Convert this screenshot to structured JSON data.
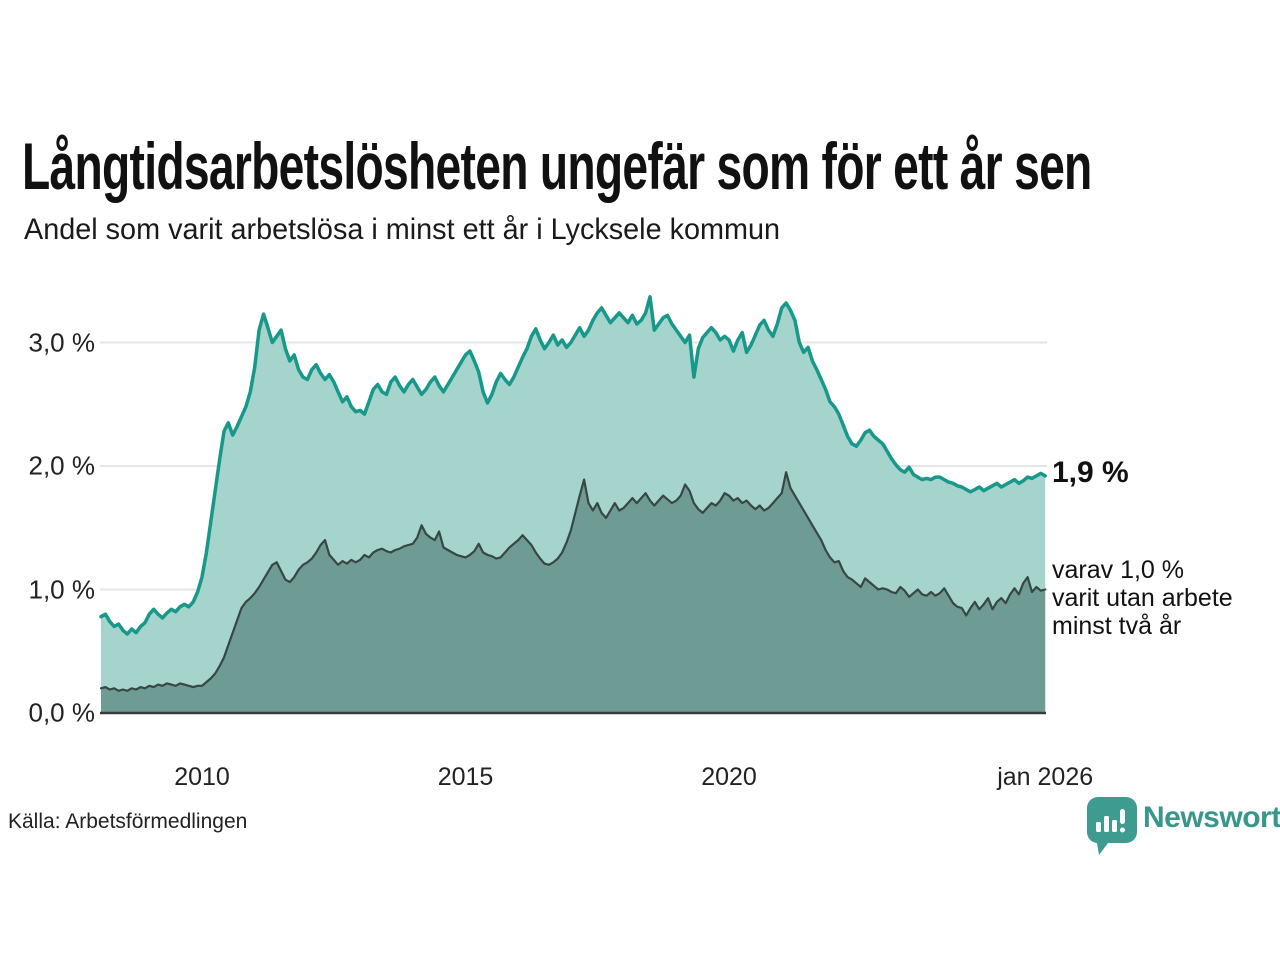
{
  "header": {
    "title": "Långtidsarbetslösheten ungefär som för ett år sen",
    "subtitle": "Andel som varit arbetslösa i minst ett år i Lycksele kommun"
  },
  "annotations": {
    "latest_value": "1,9 %",
    "note_lines": [
      "varav 1,0 %",
      "varit utan arbete",
      "minst två år"
    ]
  },
  "source": {
    "label": "Källa: Arbetsförmedlingen"
  },
  "branding": {
    "name": "Newsworthy",
    "logo_icon": "bar-chart-speech-bubble-icon",
    "color": "#38968b"
  },
  "colors": {
    "line_1yr": "#17988a",
    "fill_1yr": "#a5d4cd",
    "line_2yr": "#37474338",
    "line_2yr_stroke": "#374743",
    "fill_2yr": "#6f9b95",
    "gridline": "#e4e4e9",
    "axis": "#3b3b3b",
    "text": "#1a1a1a"
  },
  "chart_data": {
    "type": "area",
    "title": "Långtidsarbetslösheten ungefär som för ett år sen",
    "subtitle": "Andel som varit arbetslösa i minst ett år i Lycksele kommun",
    "unit": "%",
    "frequency": "monthly",
    "start": {
      "year": 2008,
      "month": 2
    },
    "end_label": "jan 2026",
    "x_domain": [
      2008.083,
      2026.0
    ],
    "ylim": [
      0,
      3.45
    ],
    "grid": true,
    "legend_position": "none",
    "x_ticks": [
      {
        "label": "2010",
        "year": 2010
      },
      {
        "label": "2015",
        "year": 2015
      },
      {
        "label": "2020",
        "year": 2020
      },
      {
        "label": "jan 2026",
        "year": 2026
      }
    ],
    "y_ticks": [
      {
        "label": "0,0 %",
        "value": 0
      },
      {
        "label": "1,0 %",
        "value": 1
      },
      {
        "label": "2,0 %",
        "value": 2
      },
      {
        "label": "3,0 %",
        "value": 3
      }
    ],
    "y_gridlines": [
      1,
      2,
      3
    ],
    "series": [
      {
        "name": "Andel arbetslösa i minst ett år",
        "latest_value": 1.9,
        "line_color": "#17988a",
        "fill_color": "#a5d4cd",
        "line_width": 3.5,
        "values": [
          0.78,
          0.8,
          0.74,
          0.7,
          0.72,
          0.67,
          0.64,
          0.68,
          0.65,
          0.7,
          0.73,
          0.8,
          0.84,
          0.8,
          0.77,
          0.81,
          0.84,
          0.82,
          0.86,
          0.88,
          0.86,
          0.9,
          0.98,
          1.1,
          1.3,
          1.55,
          1.8,
          2.05,
          2.28,
          2.35,
          2.25,
          2.32,
          2.4,
          2.48,
          2.6,
          2.8,
          3.1,
          3.23,
          3.12,
          3.0,
          3.05,
          3.1,
          2.95,
          2.85,
          2.9,
          2.78,
          2.72,
          2.7,
          2.78,
          2.82,
          2.75,
          2.7,
          2.74,
          2.68,
          2.6,
          2.52,
          2.56,
          2.48,
          2.44,
          2.45,
          2.42,
          2.52,
          2.62,
          2.66,
          2.6,
          2.58,
          2.68,
          2.72,
          2.65,
          2.6,
          2.66,
          2.7,
          2.64,
          2.58,
          2.62,
          2.68,
          2.72,
          2.65,
          2.6,
          2.66,
          2.72,
          2.78,
          2.84,
          2.9,
          2.93,
          2.85,
          2.76,
          2.6,
          2.51,
          2.58,
          2.68,
          2.75,
          2.7,
          2.66,
          2.72,
          2.8,
          2.88,
          2.95,
          3.05,
          3.11,
          3.02,
          2.95,
          3.0,
          3.06,
          2.98,
          3.02,
          2.96,
          3.0,
          3.06,
          3.12,
          3.05,
          3.1,
          3.18,
          3.24,
          3.28,
          3.22,
          3.16,
          3.2,
          3.24,
          3.2,
          3.16,
          3.22,
          3.15,
          3.18,
          3.24,
          3.37,
          3.1,
          3.15,
          3.2,
          3.22,
          3.15,
          3.1,
          3.05,
          3.0,
          3.06,
          2.72,
          2.95,
          3.04,
          3.08,
          3.12,
          3.08,
          3.02,
          3.05,
          3.02,
          2.93,
          3.02,
          3.08,
          2.92,
          2.98,
          3.06,
          3.14,
          3.18,
          3.1,
          3.05,
          3.15,
          3.28,
          3.32,
          3.26,
          3.18,
          3.0,
          2.92,
          2.96,
          2.85,
          2.78,
          2.7,
          2.62,
          2.52,
          2.48,
          2.42,
          2.33,
          2.24,
          2.18,
          2.16,
          2.21,
          2.27,
          2.29,
          2.24,
          2.21,
          2.18,
          2.12,
          2.06,
          2.01,
          1.97,
          1.95,
          1.99,
          1.93,
          1.91,
          1.89,
          1.9,
          1.89,
          1.91,
          1.91,
          1.89,
          1.87,
          1.86,
          1.84,
          1.83,
          1.81,
          1.79,
          1.81,
          1.83,
          1.8,
          1.82,
          1.84,
          1.86,
          1.83,
          1.85,
          1.87,
          1.89,
          1.86,
          1.88,
          1.91,
          1.9,
          1.92,
          1.94,
          1.92
        ]
      },
      {
        "name": "varav utan arbete minst två år",
        "latest_value": 1.0,
        "line_color": "#374743",
        "fill_color": "#6f9b95",
        "line_width": 2.2,
        "values": [
          0.2,
          0.21,
          0.19,
          0.2,
          0.18,
          0.19,
          0.18,
          0.2,
          0.19,
          0.21,
          0.2,
          0.22,
          0.21,
          0.23,
          0.22,
          0.24,
          0.23,
          0.22,
          0.24,
          0.23,
          0.22,
          0.21,
          0.22,
          0.22,
          0.25,
          0.28,
          0.32,
          0.38,
          0.45,
          0.55,
          0.65,
          0.75,
          0.85,
          0.9,
          0.93,
          0.97,
          1.02,
          1.08,
          1.14,
          1.2,
          1.22,
          1.15,
          1.08,
          1.06,
          1.1,
          1.16,
          1.2,
          1.22,
          1.25,
          1.3,
          1.36,
          1.4,
          1.28,
          1.24,
          1.2,
          1.23,
          1.21,
          1.24,
          1.22,
          1.24,
          1.28,
          1.26,
          1.3,
          1.32,
          1.33,
          1.31,
          1.3,
          1.32,
          1.33,
          1.35,
          1.36,
          1.37,
          1.42,
          1.52,
          1.45,
          1.42,
          1.4,
          1.47,
          1.34,
          1.32,
          1.3,
          1.28,
          1.27,
          1.26,
          1.28,
          1.31,
          1.37,
          1.3,
          1.28,
          1.27,
          1.25,
          1.26,
          1.3,
          1.34,
          1.37,
          1.4,
          1.44,
          1.4,
          1.36,
          1.3,
          1.25,
          1.21,
          1.2,
          1.22,
          1.25,
          1.3,
          1.38,
          1.48,
          1.62,
          1.76,
          1.89,
          1.7,
          1.64,
          1.7,
          1.62,
          1.58,
          1.64,
          1.7,
          1.64,
          1.66,
          1.7,
          1.74,
          1.7,
          1.74,
          1.78,
          1.72,
          1.68,
          1.72,
          1.76,
          1.73,
          1.7,
          1.72,
          1.76,
          1.85,
          1.8,
          1.7,
          1.65,
          1.62,
          1.66,
          1.7,
          1.68,
          1.72,
          1.78,
          1.76,
          1.72,
          1.74,
          1.7,
          1.72,
          1.68,
          1.65,
          1.68,
          1.64,
          1.66,
          1.7,
          1.74,
          1.78,
          1.95,
          1.82,
          1.76,
          1.7,
          1.64,
          1.58,
          1.52,
          1.46,
          1.4,
          1.32,
          1.26,
          1.22,
          1.23,
          1.15,
          1.1,
          1.08,
          1.05,
          1.02,
          1.09,
          1.06,
          1.03,
          1.0,
          1.01,
          1.0,
          0.98,
          0.97,
          1.02,
          0.99,
          0.94,
          0.97,
          1.0,
          0.96,
          0.95,
          0.98,
          0.95,
          0.97,
          1.01,
          0.95,
          0.89,
          0.86,
          0.85,
          0.79,
          0.85,
          0.9,
          0.84,
          0.88,
          0.93,
          0.84,
          0.9,
          0.93,
          0.89,
          0.96,
          1.01,
          0.96,
          1.05,
          1.1,
          0.98,
          1.02,
          0.99,
          1.0
        ]
      }
    ]
  }
}
